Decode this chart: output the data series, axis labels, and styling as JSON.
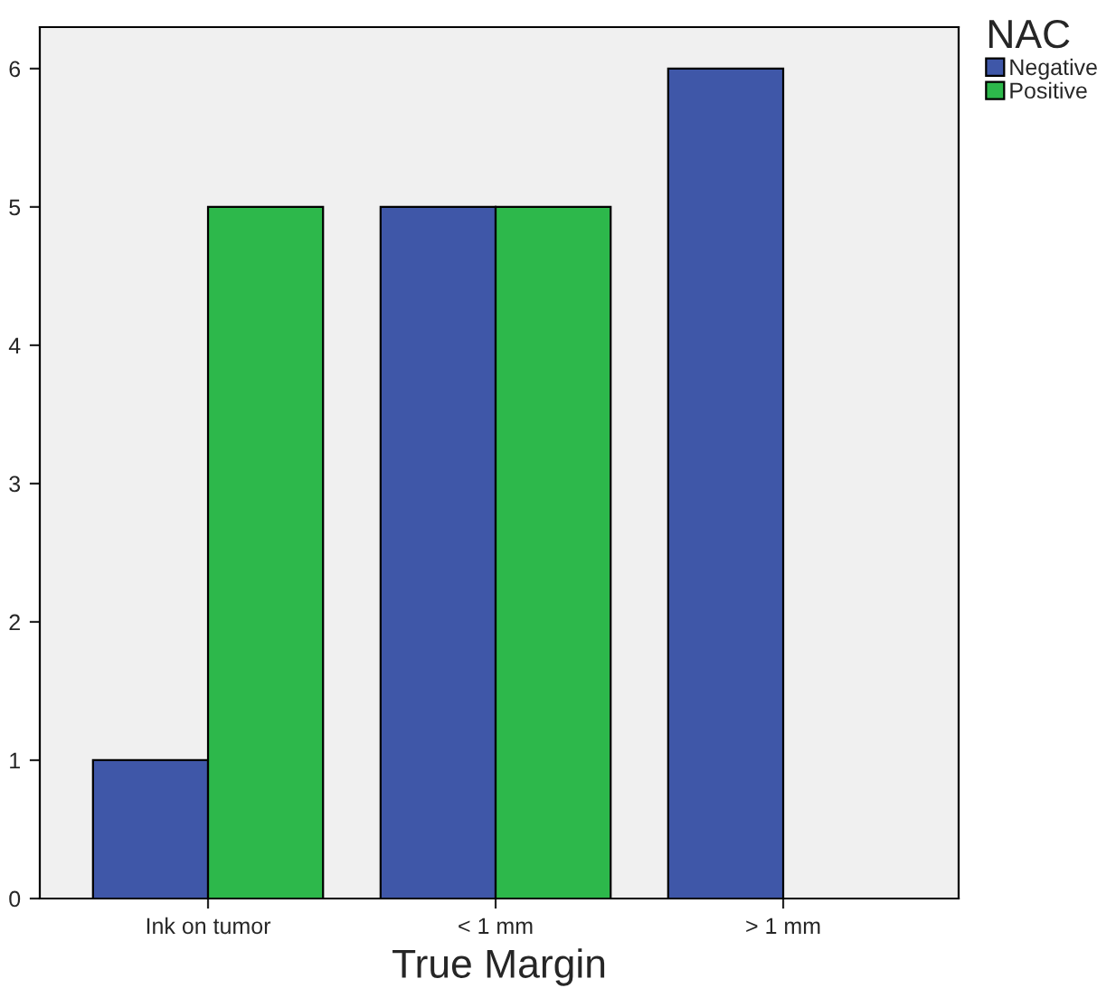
{
  "chart_data": {
    "type": "bar",
    "xlabel": "True Margin",
    "legend_title": "NAC",
    "legend": "top right",
    "categories": [
      "Ink on tumor",
      "< 1 mm",
      "> 1 mm"
    ],
    "series": [
      {
        "name": "Negative",
        "color": "#3f57a8",
        "values": [
          1,
          5,
          6
        ]
      },
      {
        "name": "Positive",
        "color": "#2db84b",
        "values": [
          5,
          5,
          null
        ]
      }
    ],
    "ylim": [
      0,
      6.3
    ],
    "yticks": [
      0,
      1,
      2,
      3,
      4,
      5,
      6
    ],
    "grid": false
  }
}
